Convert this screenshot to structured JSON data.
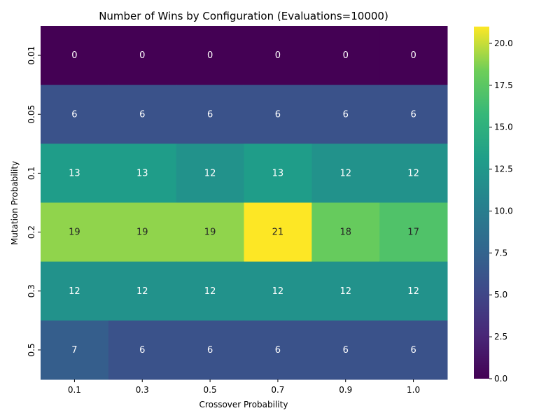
{
  "chart_data": {
    "type": "heatmap",
    "title": "Number of Wins by Configuration (Evaluations=10000)",
    "xlabel": "Crossover Probability",
    "ylabel": "Mutation Probability",
    "x_categories": [
      "0.1",
      "0.3",
      "0.5",
      "0.7",
      "0.9",
      "1.0"
    ],
    "y_categories": [
      "0.01",
      "0.05",
      "0.1",
      "0.2",
      "0.3",
      "0.5"
    ],
    "values": [
      [
        0,
        0,
        0,
        0,
        0,
        0
      ],
      [
        6,
        6,
        6,
        6,
        6,
        6
      ],
      [
        13,
        13,
        12,
        13,
        12,
        12
      ],
      [
        19,
        19,
        19,
        21,
        18,
        17
      ],
      [
        12,
        12,
        12,
        12,
        12,
        12
      ],
      [
        7,
        6,
        6,
        6,
        6,
        6
      ]
    ],
    "colormap": "viridis",
    "vmin": 0,
    "vmax": 21,
    "colorbar_ticks": [
      "0.0",
      "2.5",
      "5.0",
      "7.5",
      "10.0",
      "12.5",
      "15.0",
      "17.5",
      "20.0"
    ],
    "colorbar_tick_values": [
      0,
      2.5,
      5,
      7.5,
      10,
      12.5,
      15,
      17.5,
      20
    ],
    "annotations": true
  }
}
